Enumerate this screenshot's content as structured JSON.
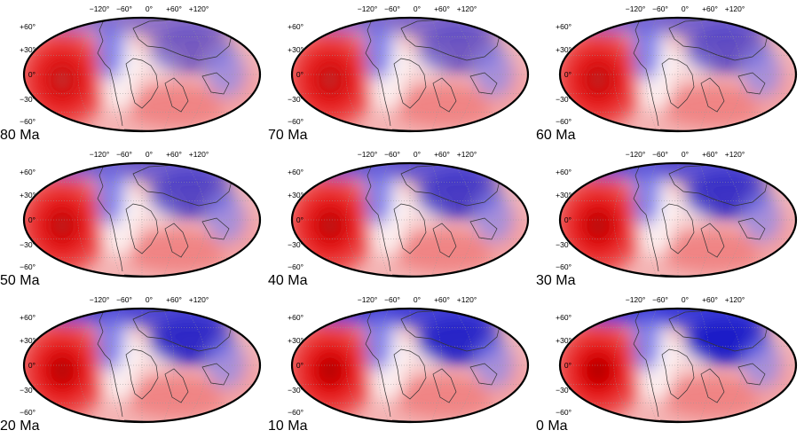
{
  "figure": {
    "lon_ticks": [
      "−120°",
      "−60°",
      "0°",
      "+60°",
      "+120°"
    ],
    "lat_ticks": [
      "+60°",
      "+30°",
      "0°",
      "−30°",
      "−60°"
    ],
    "colors": {
      "positive": "#e00000",
      "negative": "#0000d0",
      "neutral": "#ffffff",
      "outline": "#000000",
      "coast": "#333333"
    },
    "panels": [
      {
        "age": "80 Ma"
      },
      {
        "age": "70 Ma"
      },
      {
        "age": "60 Ma"
      },
      {
        "age": "50 Ma"
      },
      {
        "age": "40 Ma"
      },
      {
        "age": "30 Ma"
      },
      {
        "age": "20 Ma"
      },
      {
        "age": "10 Ma"
      },
      {
        "age": "0 Ma"
      }
    ]
  }
}
